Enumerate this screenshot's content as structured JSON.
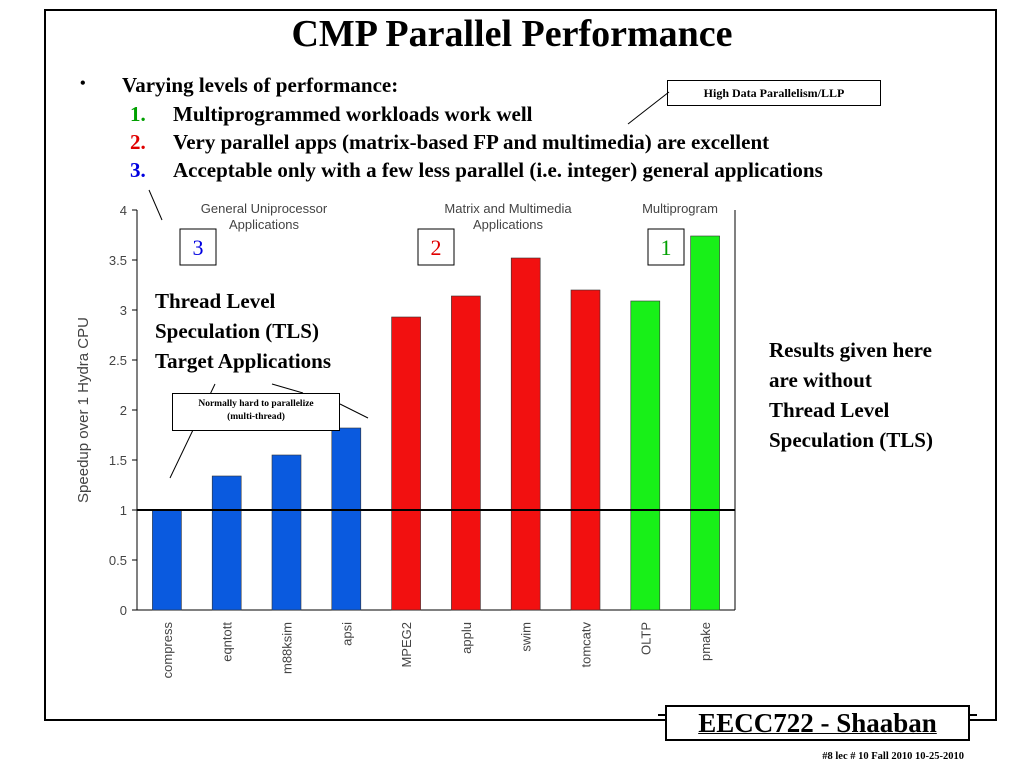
{
  "title": "CMP Parallel Performance",
  "bullets": {
    "marker": "•",
    "intro": "Varying levels of performance:",
    "items": [
      {
        "num": "1.",
        "text": "Multiprogrammed workloads work well",
        "color": "#00a000"
      },
      {
        "num": "2.",
        "text": "Very parallel apps (matrix-based FP and multimedia) are excellent",
        "color": "#e00000"
      },
      {
        "num": "3.",
        "text": "Acceptable only with a few less parallel (i.e. integer) general applications",
        "color": "#0000e0"
      }
    ]
  },
  "callouts": {
    "high_data": "High Data Parallelism/LLP",
    "hard_to_parallelize_1": "Normally hard to parallelize",
    "hard_to_parallelize_2": "(multi-thread)",
    "tls_target": [
      "Thread Level",
      "Speculation (TLS)",
      "Target Applications"
    ],
    "results": [
      "Results given here",
      "are without",
      "Thread Level",
      "Speculation (TLS)"
    ]
  },
  "chart_data": {
    "type": "bar",
    "categories": [
      "compress",
      "eqntott",
      "m88ksim",
      "apsi",
      "MPEG2",
      "applu",
      "swim",
      "tomcatv",
      "OLTP",
      "pmake"
    ],
    "values": [
      1.0,
      1.34,
      1.55,
      1.82,
      2.93,
      3.14,
      3.52,
      3.2,
      3.09,
      3.74
    ],
    "bar_colors": [
      "#0a5adf",
      "#0a5adf",
      "#0a5adf",
      "#0a5adf",
      "#f21010",
      "#f21010",
      "#f21010",
      "#f21010",
      "#18f018",
      "#18f018"
    ],
    "groups": [
      {
        "label": [
          "General Uniprocessor",
          "Applications"
        ],
        "number": "3",
        "number_color": "#0000e0"
      },
      {
        "label": [
          "Matrix and Multimedia",
          "Applications"
        ],
        "number": "2",
        "number_color": "#e00000"
      },
      {
        "label": [
          "Multiprogram"
        ],
        "number": "1",
        "number_color": "#00a000"
      }
    ],
    "ylabel": "Speedup over 1 Hydra CPU",
    "ylim": [
      0,
      4
    ],
    "yticks": [
      "0",
      "0.5",
      "1",
      "1.5",
      "2",
      "2.5",
      "3",
      "3.5",
      "4"
    ],
    "reference_line": 1
  },
  "footer": {
    "course": "EECC722 - Shaaban",
    "info": "#8   lec # 10    Fall 2010   10-25-2010"
  }
}
